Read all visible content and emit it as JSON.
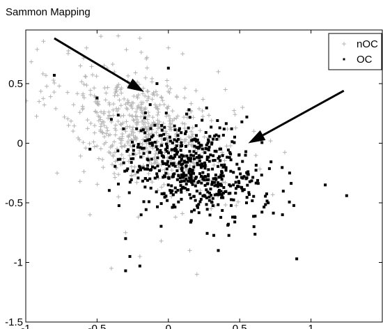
{
  "chart_data": {
    "type": "scatter",
    "title": "Sammon Mapping",
    "xlabel": "",
    "ylabel": "",
    "xlim": [
      -1,
      1.5
    ],
    "ylim": [
      -1.5,
      0.95
    ],
    "x_ticks": [
      -1,
      -0.5,
      0,
      0.5,
      1
    ],
    "y_ticks": [
      -1.5,
      -1,
      -0.5,
      0,
      0.5
    ],
    "grid": false,
    "legend_position": "top-right",
    "series": [
      {
        "name": "nOC",
        "marker": "plus",
        "color": "#b4b4b4",
        "cluster": {
          "center": [
            -0.15,
            0.12
          ],
          "spread": [
            0.3,
            0.26
          ],
          "correlation": -0.45,
          "count": 620
        },
        "points": [
          [
            -0.78,
            -0.25
          ],
          [
            -0.62,
            -0.32
          ],
          [
            -0.55,
            -0.6
          ],
          [
            -0.3,
            -0.75
          ],
          [
            -0.2,
            -0.95
          ],
          [
            -0.05,
            -0.82
          ],
          [
            0.15,
            -0.9
          ],
          [
            0.2,
            -1.1
          ],
          [
            -0.4,
            -1.05
          ],
          [
            0.0,
            0.8
          ],
          [
            -0.2,
            0.88
          ],
          [
            0.1,
            0.75
          ],
          [
            -0.45,
            0.65
          ],
          [
            0.35,
            0.6
          ],
          [
            0.4,
            0.45
          ],
          [
            0.6,
            0.1
          ],
          [
            0.52,
            0.3
          ],
          [
            -0.7,
            0.15
          ],
          [
            -0.6,
            0.4
          ],
          [
            -0.35,
            -0.45
          ],
          [
            0.05,
            -0.62
          ],
          [
            0.3,
            -0.55
          ]
        ]
      },
      {
        "name": "OC",
        "marker": "dot",
        "color": "#000000",
        "cluster": {
          "center": [
            0.18,
            -0.22
          ],
          "spread": [
            0.24,
            0.2
          ],
          "correlation": -0.3,
          "count": 560
        },
        "points": [
          [
            -0.8,
            0.57
          ],
          [
            -0.3,
            -0.8
          ],
          [
            -0.27,
            -0.95
          ],
          [
            -0.3,
            -1.07
          ],
          [
            -0.2,
            -1.03
          ],
          [
            0.35,
            -0.9
          ],
          [
            0.9,
            -0.97
          ],
          [
            1.1,
            -0.35
          ],
          [
            1.25,
            -0.44
          ],
          [
            0.85,
            -0.25
          ],
          [
            0.55,
            0.22
          ],
          [
            0.6,
            -0.7
          ],
          [
            0.45,
            -0.62
          ],
          [
            -0.4,
            0.2
          ],
          [
            -0.55,
            -0.05
          ],
          [
            -0.5,
            0.38
          ],
          [
            0.0,
            0.63
          ],
          [
            -0.08,
            0.5
          ],
          [
            0.7,
            -0.5
          ],
          [
            0.8,
            -0.6
          ]
        ]
      }
    ],
    "annotations": [
      {
        "type": "arrow",
        "from": [
          -0.8,
          0.88
        ],
        "to": [
          -0.17,
          0.43
        ]
      },
      {
        "type": "arrow",
        "from": [
          1.23,
          0.44
        ],
        "to": [
          0.56,
          0.0
        ]
      }
    ]
  }
}
